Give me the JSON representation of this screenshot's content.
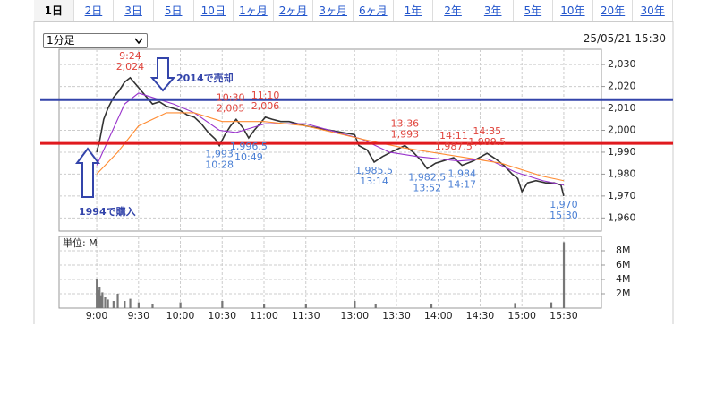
{
  "tabs": [
    "1日",
    "2日",
    "3日",
    "5日",
    "10日",
    "1ヶ月",
    "2ヶ月",
    "3ヶ月",
    "6ヶ月",
    "1年",
    "2年",
    "3年",
    "5年",
    "10年",
    "20年",
    "30年"
  ],
  "selected_tab": 0,
  "interval_select": "1分足",
  "timestamp": "25/05/21 15:30",
  "chart_data": [
    {
      "type": "line",
      "xlim": [
        -27,
        362
      ],
      "ylim": [
        1954,
        2037
      ],
      "yticks": [
        {
          "value": 1960,
          "label": "1,960"
        },
        {
          "value": 1970,
          "label": "1,970"
        },
        {
          "value": 1980,
          "label": "1,980"
        },
        {
          "value": 1990,
          "label": "1,990"
        },
        {
          "value": 2000,
          "label": "2,000"
        },
        {
          "value": 2010,
          "label": "2,010"
        },
        {
          "value": 2020,
          "label": "2,020"
        },
        {
          "value": 2030,
          "label": "2,030"
        }
      ],
      "grid": true,
      "series": [
        {
          "color": "#333333",
          "x": [
            0,
            2,
            5,
            8,
            12,
            16,
            20,
            24,
            28,
            32,
            36,
            40,
            45,
            50,
            55,
            60,
            65,
            70,
            75,
            80,
            85,
            88,
            92,
            96,
            100,
            105,
            109,
            113,
            117,
            121,
            126,
            132,
            138,
            144,
            150,
            185,
            188,
            194,
            199,
            205,
            211,
            221,
            227,
            233,
            237,
            243,
            256,
            262,
            270,
            280,
            286,
            292,
            298,
            302,
            305,
            309,
            315,
            322,
            328,
            333,
            335
          ],
          "values": [
            1990,
            1995,
            2005,
            2010,
            2015,
            2018,
            2022,
            2024,
            2021,
            2018,
            2015,
            2012,
            2013,
            2011,
            2010,
            2009,
            2007,
            2006,
            2003,
            1999,
            1996,
            1993,
            1998,
            2002,
            2005,
            2001,
            1996.5,
            2000,
            2003,
            2006,
            2005,
            2004,
            2004,
            2003,
            2002,
            1998,
            1993,
            1991,
            1985.5,
            1988,
            1990,
            1993,
            1990,
            1986,
            1982.5,
            1985,
            1987.5,
            1984,
            1986,
            1989.5,
            1987,
            1984,
            1980,
            1978,
            1972,
            1976,
            1977,
            1976,
            1976,
            1975,
            1970
          ]
        },
        {
          "color": "#9933cc",
          "x": [
            0,
            10,
            20,
            30,
            40,
            55,
            70,
            88,
            100,
            121,
            150,
            190,
            210,
            230,
            260,
            280,
            300,
            320,
            335
          ],
          "values": [
            1984,
            1998,
            2012,
            2017,
            2015,
            2012,
            2008,
            2000,
            1999,
            2003,
            2003,
            1996,
            1990,
            1988,
            1986,
            1987,
            1981,
            1977,
            1975
          ]
        },
        {
          "color": "#ff8c33",
          "x": [
            0,
            15,
            30,
            50,
            70,
            90,
            120,
            150,
            190,
            220,
            260,
            290,
            320,
            335
          ],
          "values": [
            1980,
            1990,
            2002,
            2008,
            2008,
            2004,
            2004,
            2002,
            1996,
            1992,
            1988,
            1985,
            1979,
            1977
          ]
        }
      ],
      "annotations": [
        {
          "kind": "high",
          "color": "#e0443c",
          "time": "9:24",
          "x": 24,
          "price": {
            "value": 2024,
            "label": "2,024"
          }
        },
        {
          "kind": "high",
          "color": "#e0443c",
          "time": "10:30",
          "x": 96,
          "price": {
            "value": 2005,
            "label": "2,005"
          }
        },
        {
          "kind": "high",
          "color": "#e0443c",
          "time": "11:10",
          "x": 121,
          "price": {
            "value": 2006,
            "label": "2,006"
          }
        },
        {
          "kind": "high",
          "color": "#e0443c",
          "time": "13:36",
          "x": 221,
          "price": {
            "value": 1993,
            "label": "1,993"
          }
        },
        {
          "kind": "high",
          "color": "#e0443c",
          "time": "14:11",
          "x": 256,
          "price": {
            "value": 1987.5,
            "label": "1,987.5"
          }
        },
        {
          "kind": "high",
          "color": "#e0443c",
          "time": "14:35",
          "x": 280,
          "price": {
            "value": 1989.5,
            "label": "1,989.5"
          }
        },
        {
          "kind": "low",
          "color": "#4a7fd4",
          "time": "10:28",
          "x": 88,
          "price": {
            "value": 1993,
            "label": "1,993"
          }
        },
        {
          "kind": "low",
          "color": "#4a7fd4",
          "time": "10:49",
          "x": 109,
          "price": {
            "value": 1996.5,
            "label": "1,996.5"
          }
        },
        {
          "kind": "low",
          "color": "#4a7fd4",
          "time": "13:14",
          "x": 199,
          "price": {
            "value": 1985.5,
            "label": "1,985.5"
          }
        },
        {
          "kind": "low",
          "color": "#4a7fd4",
          "time": "13:52",
          "x": 237,
          "price": {
            "value": 1982.5,
            "label": "1,982.5"
          }
        },
        {
          "kind": "low",
          "color": "#4a7fd4",
          "time": "14:17",
          "x": 262,
          "price": {
            "value": 1984,
            "label": "1,984"
          }
        },
        {
          "kind": "low",
          "color": "#4a7fd4",
          "time": "15:30",
          "x": 335,
          "price": {
            "value": 1970,
            "label": "1,970"
          }
        }
      ],
      "reference_lines": [
        {
          "value": 2014,
          "label": "2014で売却",
          "color": "#3344aa"
        },
        {
          "value": 1994,
          "label": "1994で購入",
          "color": "#e0191e"
        }
      ]
    },
    {
      "type": "bar",
      "unit_label": "単位: M",
      "color": "#777777",
      "xlim": [
        -27,
        362
      ],
      "ylim": [
        0,
        10
      ],
      "xticks": [
        {
          "value": 0,
          "label": "9:00"
        },
        {
          "value": 30,
          "label": "9:30"
        },
        {
          "value": 60,
          "label": "10:00"
        },
        {
          "value": 90,
          "label": "10:30"
        },
        {
          "value": 120,
          "label": "11:00"
        },
        {
          "value": 150,
          "label": "11:30"
        },
        {
          "value": 185,
          "label": "13:00"
        },
        {
          "value": 215,
          "label": "13:30"
        },
        {
          "value": 245,
          "label": "14:00"
        },
        {
          "value": 275,
          "label": "14:30"
        },
        {
          "value": 305,
          "label": "15:00"
        },
        {
          "value": 335,
          "label": "15:30"
        }
      ],
      "yticks": [
        {
          "value": 2,
          "label": "2M"
        },
        {
          "value": 4,
          "label": "4M"
        },
        {
          "value": 6,
          "label": "6M"
        },
        {
          "value": 8,
          "label": "8M"
        }
      ],
      "grid": true,
      "x": [
        0,
        1,
        2,
        3,
        4,
        6,
        8,
        12,
        15,
        20,
        24,
        30,
        40,
        60,
        90,
        120,
        150,
        185,
        200,
        240,
        300,
        326,
        335
      ],
      "values": [
        4.0,
        2.5,
        3.0,
        1.8,
        2.2,
        1.5,
        1.2,
        1.0,
        2.0,
        1.0,
        1.3,
        0.8,
        0.6,
        0.8,
        1.0,
        0.6,
        0.5,
        1.0,
        0.5,
        0.6,
        0.7,
        0.8,
        9.2
      ]
    }
  ]
}
